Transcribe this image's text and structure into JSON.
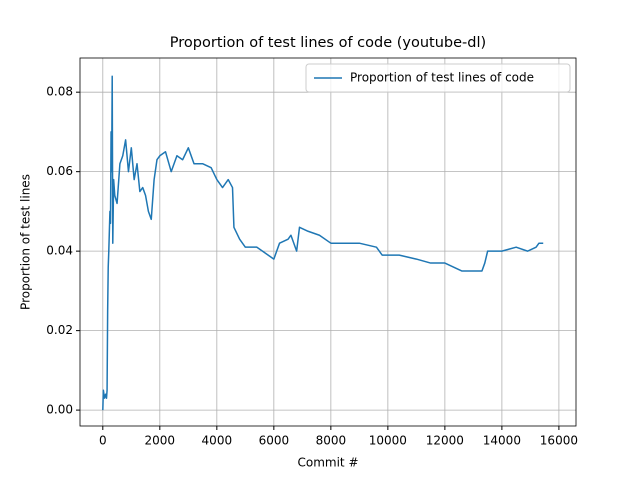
{
  "chart_data": {
    "type": "line",
    "title": "Proportion of test lines of code (youtube-dl)",
    "x_label": "Commit #",
    "y_label": "Proportion of test lines",
    "x": [
      0,
      20,
      60,
      100,
      130,
      150,
      170,
      190,
      210,
      230,
      250,
      270,
      290,
      310,
      330,
      350,
      380,
      420,
      500,
      600,
      700,
      800,
      900,
      1000,
      1100,
      1200,
      1300,
      1400,
      1500,
      1600,
      1700,
      1800,
      1900,
      2000,
      2200,
      2400,
      2600,
      2800,
      3000,
      3200,
      3500,
      3800,
      4000,
      4200,
      4400,
      4550,
      4600,
      4800,
      5000,
      5400,
      5800,
      6000,
      6200,
      6500,
      6600,
      6800,
      6900,
      7200,
      7600,
      8000,
      8500,
      9000,
      9600,
      9800,
      10400,
      11000,
      11500,
      12000,
      12600,
      13300,
      13400,
      13500,
      14000,
      14500,
      14900,
      15200,
      15300,
      15450
    ],
    "series": [
      {
        "name": "Proportion of test lines of code",
        "color": "#1f77b4",
        "values": [
          0.0,
          0.005,
          0.003,
          0.004,
          0.003,
          0.005,
          0.025,
          0.036,
          0.04,
          0.045,
          0.05,
          0.047,
          0.07,
          0.06,
          0.084,
          0.042,
          0.058,
          0.054,
          0.052,
          0.062,
          0.064,
          0.068,
          0.06,
          0.066,
          0.058,
          0.062,
          0.055,
          0.056,
          0.054,
          0.05,
          0.048,
          0.058,
          0.063,
          0.064,
          0.065,
          0.06,
          0.064,
          0.063,
          0.066,
          0.062,
          0.062,
          0.061,
          0.058,
          0.056,
          0.058,
          0.056,
          0.046,
          0.043,
          0.041,
          0.041,
          0.039,
          0.038,
          0.042,
          0.043,
          0.044,
          0.04,
          0.046,
          0.045,
          0.044,
          0.042,
          0.042,
          0.042,
          0.041,
          0.039,
          0.039,
          0.038,
          0.037,
          0.037,
          0.035,
          0.035,
          0.037,
          0.04,
          0.04,
          0.041,
          0.04,
          0.041,
          0.042,
          0.042
        ]
      }
    ],
    "xlim": [
      -800,
      16600
    ],
    "ylim": [
      -0.004,
      0.0886
    ],
    "xticks": [
      0,
      2000,
      4000,
      6000,
      8000,
      10000,
      12000,
      14000,
      16000
    ],
    "yticks": [
      {
        "value": 0,
        "label": "0.00"
      },
      {
        "value": 0.02,
        "label": "0.02"
      },
      {
        "value": 0.04,
        "label": "0.04"
      },
      {
        "value": 0.06,
        "label": "0.06"
      },
      {
        "value": 0.08,
        "label": "0.08"
      }
    ],
    "grid": true,
    "legend": "upper-right"
  }
}
